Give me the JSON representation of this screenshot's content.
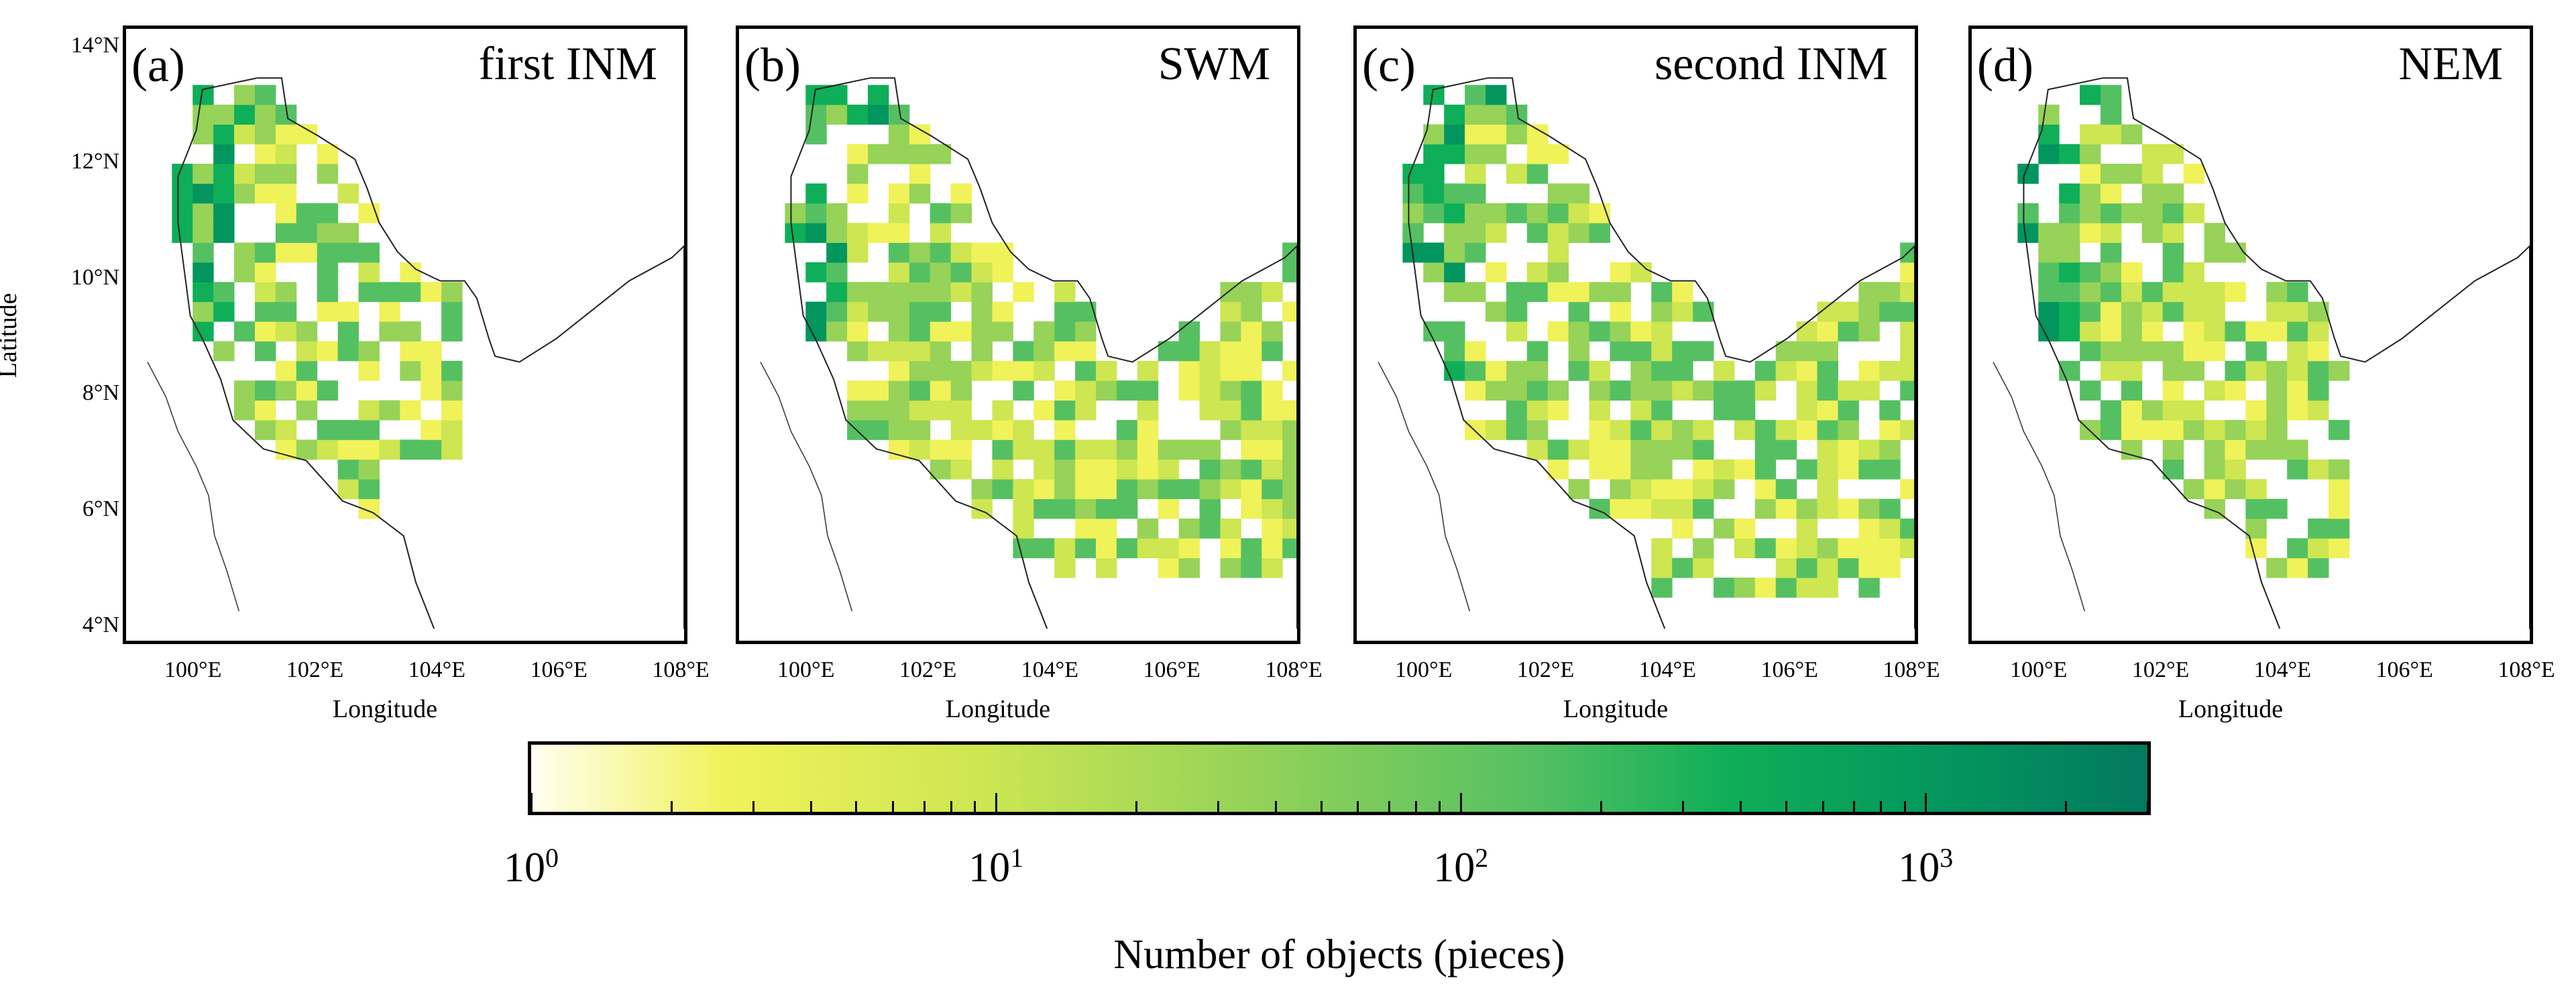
{
  "panels": [
    {
      "id": "a",
      "letter": "(a)",
      "season": "first INM"
    },
    {
      "id": "b",
      "letter": "(b)",
      "season": "SWM"
    },
    {
      "id": "c",
      "letter": "(c)",
      "season": "second INM"
    },
    {
      "id": "d",
      "letter": "(d)",
      "season": "NEM"
    }
  ],
  "axes": {
    "ylabel": "Latitude",
    "xlabel": "Longitude",
    "yticks": [
      "14°N",
      "12°N",
      "10°N",
      "8°N",
      "6°N",
      "4°N"
    ],
    "xticks": [
      "100°E",
      "102°E",
      "104°E",
      "106°E",
      "108°E"
    ],
    "ylim": [
      4,
      14
    ],
    "xlim": [
      99,
      108
    ]
  },
  "colorbar": {
    "title": "Number of objects (pieces)",
    "scale": "log",
    "range": [
      1,
      3000
    ],
    "labels": [
      {
        "base": "10",
        "exp": "0"
      },
      {
        "base": "10",
        "exp": "1"
      },
      {
        "base": "10",
        "exp": "2"
      },
      {
        "base": "10",
        "exp": "3"
      }
    ],
    "colors": [
      "#fffff2",
      "#f0f25a",
      "#cde652",
      "#96d358",
      "#55c062",
      "#0fae58",
      "#03955e",
      "#027a5e"
    ]
  }
}
